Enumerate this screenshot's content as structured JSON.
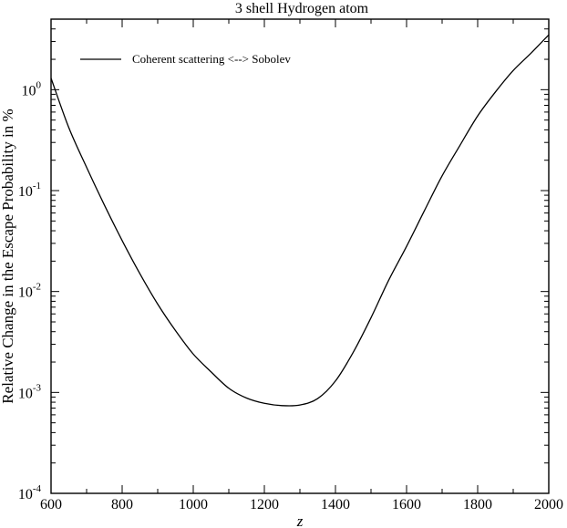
{
  "chart_data": {
    "type": "line",
    "title": "3 shell Hydrogen atom",
    "xlabel": "z",
    "ylabel": "Relative Change in the Escape Probability in %",
    "xlim": [
      600,
      2000
    ],
    "ylim": [
      0.0001,
      5
    ],
    "yscale": "log",
    "grid": false,
    "legend_position": "top-left",
    "x_ticks": [
      "600",
      "800",
      "1000",
      "1200",
      "1400",
      "1600",
      "1800",
      "2000"
    ],
    "y_ticks": [
      {
        "base": "10",
        "exp": "-4"
      },
      {
        "base": "10",
        "exp": "-3"
      },
      {
        "base": "10",
        "exp": "-2"
      },
      {
        "base": "10",
        "exp": "-1"
      },
      {
        "base": "10",
        "exp": "0"
      }
    ],
    "series": [
      {
        "name": "Coherent scattering <--> Sobolev",
        "color": "#000000",
        "x": [
          600,
          650,
          700,
          750,
          800,
          850,
          900,
          950,
          1000,
          1050,
          1100,
          1150,
          1200,
          1250,
          1300,
          1350,
          1400,
          1450,
          1500,
          1550,
          1600,
          1650,
          1700,
          1750,
          1800,
          1850,
          1900,
          1950,
          2000
        ],
        "y": [
          1.3,
          0.42,
          0.17,
          0.072,
          0.032,
          0.015,
          0.0075,
          0.0041,
          0.0024,
          0.0016,
          0.0011,
          0.00088,
          0.00078,
          0.00074,
          0.00075,
          0.00087,
          0.0013,
          0.0025,
          0.0055,
          0.013,
          0.028,
          0.063,
          0.14,
          0.28,
          0.55,
          0.95,
          1.55,
          2.3,
          3.5
        ]
      }
    ]
  }
}
